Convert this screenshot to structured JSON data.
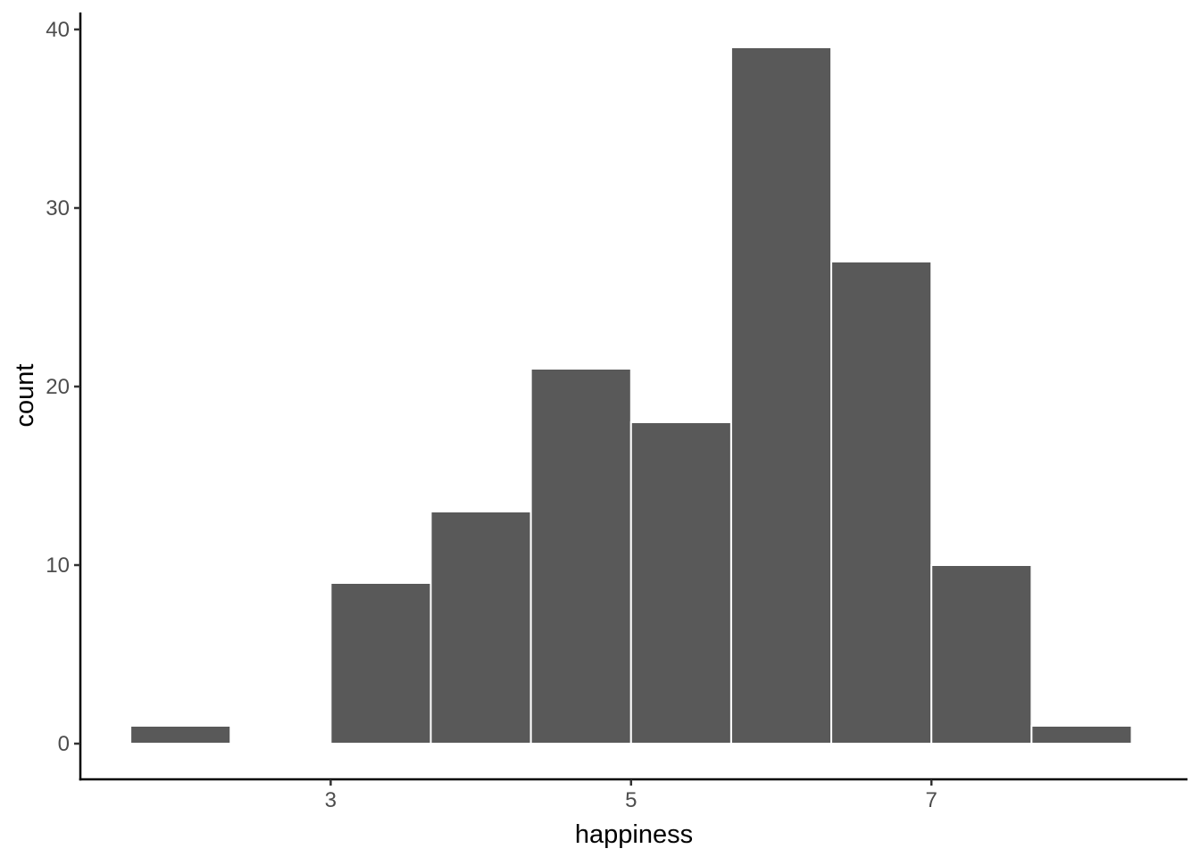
{
  "figure": {
    "background": "#FFFFFF"
  },
  "chart_data": {
    "type": "bar",
    "subtype": "histogram",
    "title": "",
    "xlabel": "happiness",
    "ylabel": "count",
    "bin_centers": [
      2.0,
      2.6667,
      3.3333,
      4.0,
      4.6667,
      5.3333,
      6.0,
      6.6667,
      7.3333,
      8.0
    ],
    "bin_width": 0.6667,
    "counts": [
      1,
      0,
      9,
      13,
      21,
      18,
      39,
      27,
      10,
      1
    ],
    "x_ticks": [
      "3",
      "5",
      "7"
    ],
    "x_tick_values": [
      3,
      5,
      7
    ],
    "y_ticks": [
      "0",
      "10",
      "20",
      "30",
      "40"
    ],
    "y_tick_values": [
      0,
      10,
      20,
      30,
      40
    ],
    "xlim": [
      1.3333,
      8.705
    ],
    "ylim": [
      -2,
      40.95
    ],
    "grid": "off",
    "legend": "none",
    "bar_fill": "#595959",
    "bar_border": "#FFFFFF",
    "axis_line_color": "#000000",
    "tick_color": "#333333",
    "tick_label_color": "#4D4D4D",
    "axis_title_color": "#000000"
  }
}
